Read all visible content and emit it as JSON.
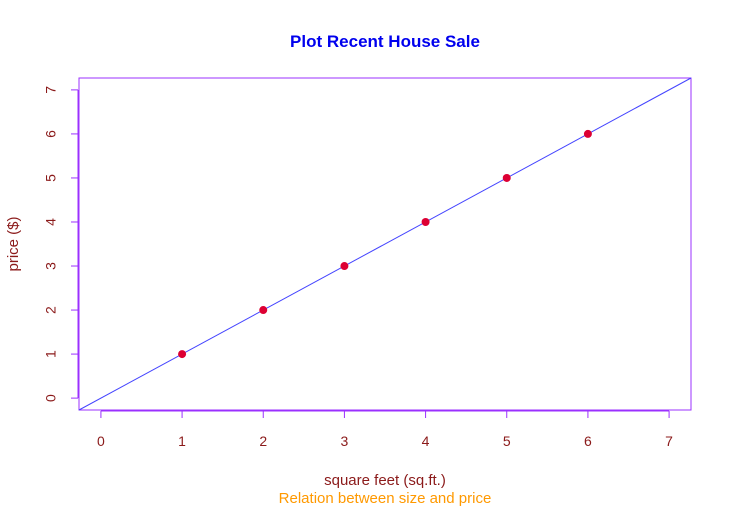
{
  "chart_data": {
    "type": "scatter",
    "title": "Plot Recent House Sale",
    "subtitle": "Relation between size and price",
    "xlabel": "square feet (sq.ft.)",
    "ylabel": "price ($)",
    "xlim": [
      -0.27,
      7.27
    ],
    "ylim": [
      -0.27,
      7.27
    ],
    "x_ticks": [
      "0",
      "1",
      "2",
      "3",
      "4",
      "5",
      "6",
      "7"
    ],
    "y_ticks": [
      "0",
      "1",
      "2",
      "3",
      "4",
      "5",
      "6",
      "7"
    ],
    "points": {
      "x": [
        1,
        2,
        3,
        4,
        5,
        6
      ],
      "y": [
        1,
        2,
        3,
        4,
        5,
        6
      ]
    },
    "regression_line": {
      "intercept": 0,
      "slope": 1
    },
    "grid": false,
    "colors": {
      "title": "#0000ee",
      "axis_labels": "#8b1a1a",
      "tick_labels": "#8b1a1a",
      "subtitle": "#ff9900",
      "points": "#dd0033",
      "line": "#4444ff",
      "box": "#9b30ff"
    }
  }
}
